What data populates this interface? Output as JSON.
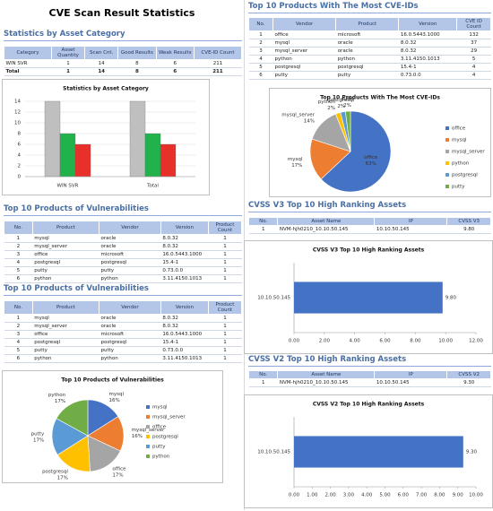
{
  "title": "CVE Scan Result Statistics",
  "sections": [
    {
      "heading": "Statistics by Asset Category",
      "table": {
        "columns": [
          "Category",
          "Asset Quantity",
          "Scan Cnt.",
          "Good Results",
          "Weak Results",
          "CVE-ID Count"
        ],
        "rows": [
          [
            "WIN SVR",
            "1",
            "14",
            "8",
            "6",
            "211"
          ],
          [
            "Total",
            "1",
            "14",
            "8",
            "6",
            "211"
          ]
        ]
      }
    },
    {
      "heading": "Top 10 Products of Vulnerabilities",
      "table": {
        "columns": [
          "No.",
          "Product",
          "Vendor",
          "Version",
          "Product Count"
        ],
        "rows": [
          [
            "1",
            "mysql",
            "oracle",
            "8.0.32",
            "1"
          ],
          [
            "2",
            "mysql_server",
            "oracle",
            "8.0.32",
            "1"
          ],
          [
            "3",
            "office",
            "microsoft",
            "16.0.5443.1000",
            "1"
          ],
          [
            "4",
            "postgresql",
            "postgresql",
            "15.4-1",
            "1"
          ],
          [
            "5",
            "putty",
            "putty",
            "0.73.0.0",
            "1"
          ],
          [
            "6",
            "python",
            "python",
            "3.11.4150.1013",
            "1"
          ]
        ]
      }
    },
    {
      "heading": "Top 10 Products of Vulnerabilities",
      "table": {
        "columns": [
          "No.",
          "Product",
          "Vendor",
          "Version",
          "Product Count"
        ],
        "rows": [
          [
            "1",
            "mysql",
            "oracle",
            "8.0.32",
            "1"
          ],
          [
            "2",
            "mysql_server",
            "oracle",
            "8.0.32",
            "1"
          ],
          [
            "3",
            "office",
            "microsoft",
            "16.0.5443.1000",
            "1"
          ],
          [
            "4",
            "postgresql",
            "postgresql",
            "15.4-1",
            "1"
          ],
          [
            "5",
            "putty",
            "putty",
            "0.73.0.0",
            "1"
          ],
          [
            "6",
            "python",
            "python",
            "3.11.4150.1013",
            "1"
          ]
        ]
      }
    },
    {
      "heading": "Top 10 Products With The Most CVE-IDs",
      "table": {
        "columns": [
          "No.",
          "Vendor",
          "Product",
          "Version",
          "CVE ID Count"
        ],
        "rows": [
          [
            "1",
            "office",
            "microsoft",
            "16.0.5443.1000",
            "132"
          ],
          [
            "2",
            "mysql",
            "oracle",
            "8.0.32",
            "37"
          ],
          [
            "3",
            "mysql_server",
            "oracle",
            "8.0.32",
            "29"
          ],
          [
            "4",
            "python",
            "python",
            "3.11.4150.1013",
            "5"
          ],
          [
            "5",
            "postgresql",
            "postgresql",
            "15.4-1",
            "4"
          ],
          [
            "6",
            "putty",
            "putty",
            "0.73.0.0",
            "4"
          ]
        ]
      }
    },
    {
      "heading": "CVSS V3 Top 10 High Ranking Assets",
      "table": {
        "columns": [
          "No.",
          "Asset Name",
          "IP",
          "CVSS V3"
        ],
        "rows": [
          [
            "1",
            "NVM-hjh0210_10.10.50.145",
            "10.10.50.145",
            "9.80"
          ]
        ]
      }
    },
    {
      "heading": "CVSS V2 Top 10 High Ranking Assets",
      "table": {
        "columns": [
          "No.",
          "Asset Name",
          "IP",
          "CVSS V2"
        ],
        "rows": [
          [
            "1",
            "NVM-hjh0210_10.10.50.145",
            "10.10.50.145",
            "9.30"
          ]
        ]
      }
    }
  ],
  "chart_data": [
    {
      "type": "bar",
      "title": "Statistics by Asset Category",
      "categories": [
        "WIN SVR",
        "Total"
      ],
      "series": [
        {
          "color": "#bfbfbf",
          "values": [
            14,
            14
          ]
        },
        {
          "color": "#22b24c",
          "values": [
            8,
            8
          ]
        },
        {
          "color": "#e8302a",
          "values": [
            6,
            6
          ]
        }
      ],
      "ylim": [
        0,
        14
      ],
      "yticks": [
        0,
        2,
        4,
        6,
        8,
        10,
        12,
        14
      ],
      "grid": true
    },
    {
      "type": "pie",
      "title": "Top 10 Products of Vulnerabilities",
      "categories": [
        "mysql",
        "mysql_server",
        "office",
        "postgresql",
        "putty",
        "python"
      ],
      "values": [
        16,
        16,
        17,
        17,
        17,
        17
      ],
      "value_labels": [
        "16%",
        "16%",
        "17%",
        "17%",
        "17%",
        "17%"
      ],
      "colors": [
        "#4472c4",
        "#ed7d31",
        "#a5a5a5",
        "#ffc000",
        "#5b9bd5",
        "#70ad47"
      ],
      "legend": "right"
    },
    {
      "type": "pie",
      "title": "Top 10 Products With The Most CVE-IDs",
      "categories": [
        "office",
        "mysql",
        "mysql_server",
        "python",
        "postgresql",
        "putty"
      ],
      "values": [
        63,
        17,
        14,
        2,
        2,
        2
      ],
      "value_labels": [
        "63%",
        "17%",
        "14%",
        "2%",
        "2%",
        "2%"
      ],
      "colors": [
        "#4472c4",
        "#ed7d31",
        "#a5a5a5",
        "#ffc000",
        "#5b9bd5",
        "#70ad47"
      ],
      "legend": "right"
    },
    {
      "type": "hbar",
      "title": "CVSS V3 Top 10 High Ranking Assets",
      "categories": [
        "10.10.50.145"
      ],
      "values": [
        9.8
      ],
      "value_labels": [
        "9.80"
      ],
      "color": "#4472c4",
      "xlim": [
        0,
        12
      ],
      "xticks": [
        {
          "value": 0,
          "label": "0.00"
        },
        {
          "value": 2,
          "label": "2.00"
        },
        {
          "value": 4,
          "label": "4.00"
        },
        {
          "value": 6,
          "label": "6.00"
        },
        {
          "value": 8,
          "label": "8.00"
        },
        {
          "value": 10,
          "label": "10.00"
        },
        {
          "value": 12,
          "label": "12.00"
        }
      ]
    },
    {
      "type": "hbar",
      "title": "CVSS V2 Top 10 High Ranking Assets",
      "categories": [
        "10.10.50.145"
      ],
      "values": [
        9.3
      ],
      "value_labels": [
        "9.30"
      ],
      "color": "#4472c4",
      "xlim": [
        0,
        10
      ],
      "xticks": [
        {
          "value": 0,
          "label": "0.00"
        },
        {
          "value": 1,
          "label": "1.00"
        },
        {
          "value": 2,
          "label": "2.00"
        },
        {
          "value": 3,
          "label": "3.00"
        },
        {
          "value": 4,
          "label": "4.00"
        },
        {
          "value": 5,
          "label": "5.00"
        },
        {
          "value": 6,
          "label": "6.00"
        },
        {
          "value": 7,
          "label": "7.00"
        },
        {
          "value": 8,
          "label": "8.00"
        },
        {
          "value": 9,
          "label": "9.00"
        },
        {
          "value": 10,
          "label": "10.00"
        }
      ]
    }
  ]
}
